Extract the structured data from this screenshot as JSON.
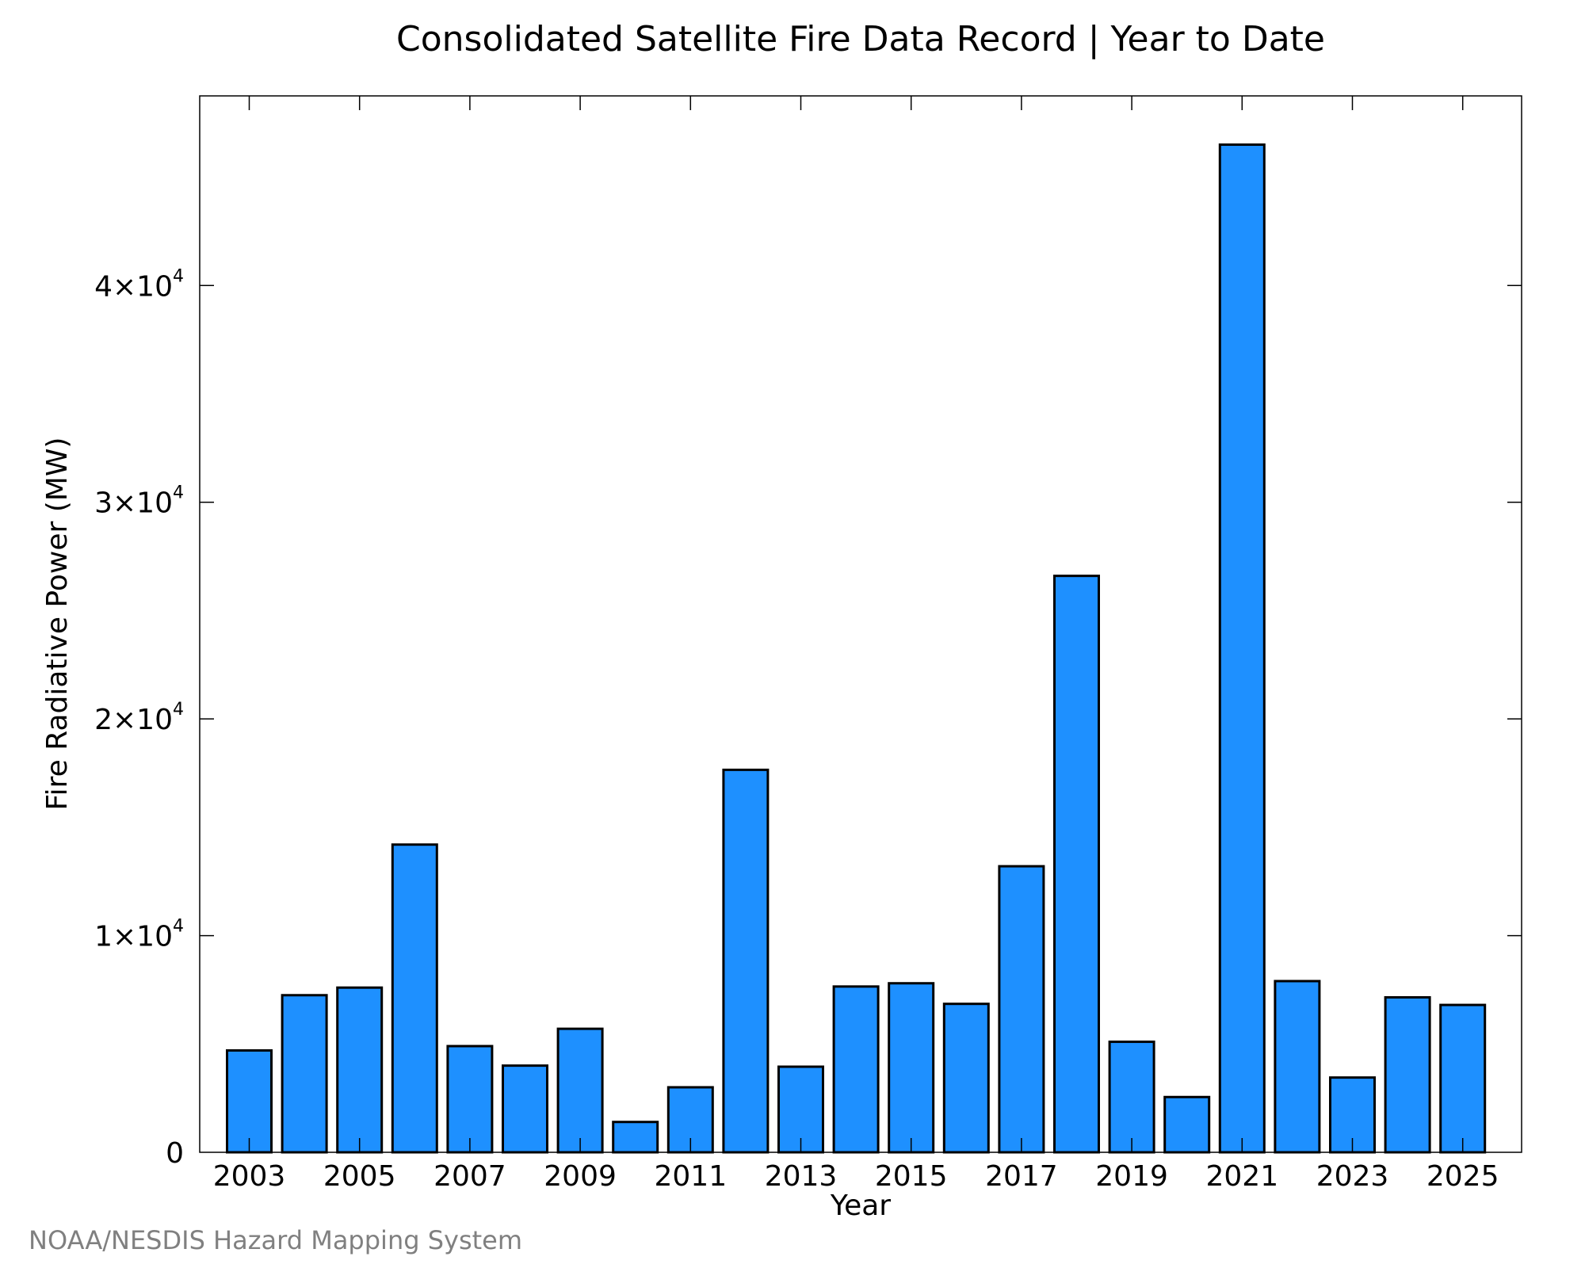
{
  "chart_data": {
    "type": "bar",
    "title": "Consolidated Satellite Fire Data Record | Year to Date",
    "xlabel": "Year",
    "ylabel": "Fire Radiative Power (MW)",
    "categories": [
      "2003",
      "2004",
      "2005",
      "2006",
      "2007",
      "2008",
      "2009",
      "2010",
      "2011",
      "2012",
      "2013",
      "2014",
      "2015",
      "2016",
      "2017",
      "2018",
      "2019",
      "2020",
      "2021",
      "2022",
      "2023",
      "2024",
      "2025"
    ],
    "values": [
      4700,
      7250,
      7600,
      14200,
      4900,
      4000,
      5700,
      1400,
      3000,
      17650,
      3950,
      7650,
      7800,
      6850,
      13200,
      26600,
      5100,
      2550,
      46500,
      7900,
      3450,
      7150,
      6800
    ],
    "x_tick_labels": [
      "2003",
      "2005",
      "2007",
      "2009",
      "2011",
      "2013",
      "2015",
      "2017",
      "2019",
      "2021",
      "2023",
      "2025"
    ],
    "y_ticks": [
      {
        "value": 0,
        "mantissa": "0",
        "exponent": ""
      },
      {
        "value": 10000,
        "mantissa": "1×10",
        "exponent": "4"
      },
      {
        "value": 20000,
        "mantissa": "2×10",
        "exponent": "4"
      },
      {
        "value": 30000,
        "mantissa": "3×10",
        "exponent": "4"
      },
      {
        "value": 40000,
        "mantissa": "4×10",
        "exponent": "4"
      }
    ],
    "ylim": [
      0,
      48750
    ],
    "grid": false,
    "bar_color": "#1e90ff",
    "bar_edge_color": "#000000"
  },
  "credit": "NOAA/NESDIS Hazard Mapping System"
}
